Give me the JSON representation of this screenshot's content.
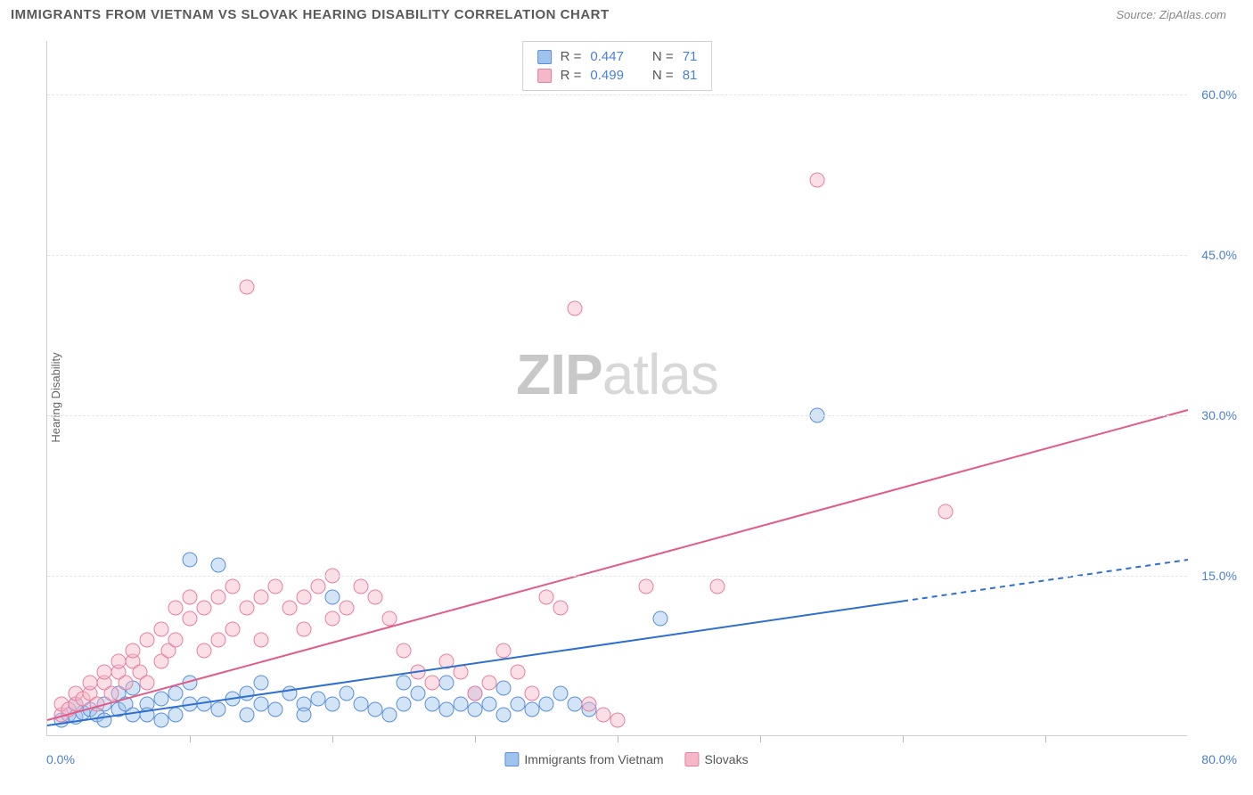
{
  "title": "IMMIGRANTS FROM VIETNAM VS SLOVAK HEARING DISABILITY CORRELATION CHART",
  "source": "Source: ZipAtlas.com",
  "y_axis_label": "Hearing Disability",
  "watermark_bold": "ZIP",
  "watermark_light": "atlas",
  "chart": {
    "type": "scatter",
    "xlim": [
      0,
      80
    ],
    "ylim": [
      0,
      65
    ],
    "x_start_label": "0.0%",
    "x_end_label": "80.0%",
    "x_tick_step": 10,
    "y_grid": [
      {
        "value": 15,
        "label": "15.0%"
      },
      {
        "value": 30,
        "label": "30.0%"
      },
      {
        "value": 45,
        "label": "45.0%"
      },
      {
        "value": 60,
        "label": "60.0%"
      }
    ],
    "background_color": "#ffffff",
    "grid_color": "#e5e5e5",
    "marker_radius": 8,
    "marker_opacity": 0.45,
    "line_width": 2,
    "series": [
      {
        "name": "Immigrants from Vietnam",
        "label": "Immigrants from Vietnam",
        "color_fill": "#9fc3ed",
        "color_stroke": "#5a8fd6",
        "line_color": "#2e6fd1",
        "r_value": "0.447",
        "n_value": "71",
        "trend": {
          "x1": 0,
          "y1": 1.0,
          "x2": 80,
          "y2": 16.5,
          "solid_until_x": 60
        },
        "points": [
          [
            1,
            1.5
          ],
          [
            1.5,
            2
          ],
          [
            2,
            1.8
          ],
          [
            2.5,
            2.2
          ],
          [
            2,
            3
          ],
          [
            3,
            2.5
          ],
          [
            3.5,
            2
          ],
          [
            4,
            3
          ],
          [
            4,
            1.5
          ],
          [
            5,
            2.5
          ],
          [
            5,
            4
          ],
          [
            5.5,
            3
          ],
          [
            6,
            2
          ],
          [
            6,
            4.5
          ],
          [
            7,
            3
          ],
          [
            7,
            2
          ],
          [
            8,
            3.5
          ],
          [
            8,
            1.5
          ],
          [
            9,
            4
          ],
          [
            9,
            2
          ],
          [
            10,
            3
          ],
          [
            10,
            5
          ],
          [
            10,
            16.5
          ],
          [
            11,
            3
          ],
          [
            12,
            16
          ],
          [
            12,
            2.5
          ],
          [
            13,
            3.5
          ],
          [
            14,
            2
          ],
          [
            14,
            4
          ],
          [
            15,
            3
          ],
          [
            15,
            5
          ],
          [
            16,
            2.5
          ],
          [
            17,
            4
          ],
          [
            18,
            3
          ],
          [
            18,
            2
          ],
          [
            19,
            3.5
          ],
          [
            20,
            13
          ],
          [
            20,
            3
          ],
          [
            21,
            4
          ],
          [
            22,
            3
          ],
          [
            23,
            2.5
          ],
          [
            24,
            2
          ],
          [
            25,
            3
          ],
          [
            25,
            5
          ],
          [
            26,
            4
          ],
          [
            27,
            3
          ],
          [
            28,
            2.5
          ],
          [
            28,
            5
          ],
          [
            29,
            3
          ],
          [
            30,
            4
          ],
          [
            30,
            2.5
          ],
          [
            31,
            3
          ],
          [
            32,
            2
          ],
          [
            32,
            4.5
          ],
          [
            33,
            3
          ],
          [
            34,
            2.5
          ],
          [
            35,
            3
          ],
          [
            36,
            4
          ],
          [
            37,
            3
          ],
          [
            38,
            2.5
          ],
          [
            43,
            11
          ],
          [
            54,
            30
          ]
        ]
      },
      {
        "name": "Slovaks",
        "label": "Slovaks",
        "color_fill": "#f5b8c8",
        "color_stroke": "#e87fa0",
        "line_color": "#e35a88",
        "r_value": "0.499",
        "n_value": "81",
        "trend": {
          "x1": 0,
          "y1": 1.5,
          "x2": 80,
          "y2": 30.5,
          "solid_until_x": 80
        },
        "points": [
          [
            1,
            2
          ],
          [
            1,
            3
          ],
          [
            1.5,
            2.5
          ],
          [
            2,
            3
          ],
          [
            2,
            4
          ],
          [
            2.5,
            3.5
          ],
          [
            3,
            4
          ],
          [
            3,
            5
          ],
          [
            3.5,
            3
          ],
          [
            4,
            5
          ],
          [
            4,
            6
          ],
          [
            4.5,
            4
          ],
          [
            5,
            6
          ],
          [
            5,
            7
          ],
          [
            5.5,
            5
          ],
          [
            6,
            7
          ],
          [
            6,
            8
          ],
          [
            6.5,
            6
          ],
          [
            7,
            9
          ],
          [
            7,
            5
          ],
          [
            8,
            10
          ],
          [
            8,
            7
          ],
          [
            8.5,
            8
          ],
          [
            9,
            12
          ],
          [
            9,
            9
          ],
          [
            10,
            11
          ],
          [
            10,
            13
          ],
          [
            11,
            12
          ],
          [
            11,
            8
          ],
          [
            12,
            13
          ],
          [
            12,
            9
          ],
          [
            13,
            14
          ],
          [
            13,
            10
          ],
          [
            14,
            42
          ],
          [
            14,
            12
          ],
          [
            15,
            13
          ],
          [
            15,
            9
          ],
          [
            16,
            14
          ],
          [
            17,
            12
          ],
          [
            18,
            10
          ],
          [
            18,
            13
          ],
          [
            19,
            14
          ],
          [
            20,
            11
          ],
          [
            20,
            15
          ],
          [
            21,
            12
          ],
          [
            22,
            14
          ],
          [
            23,
            13
          ],
          [
            24,
            11
          ],
          [
            25,
            8
          ],
          [
            26,
            6
          ],
          [
            27,
            5
          ],
          [
            28,
            7
          ],
          [
            29,
            6
          ],
          [
            30,
            4
          ],
          [
            31,
            5
          ],
          [
            32,
            8
          ],
          [
            33,
            6
          ],
          [
            34,
            4
          ],
          [
            35,
            13
          ],
          [
            36,
            12
          ],
          [
            37,
            40
          ],
          [
            38,
            3
          ],
          [
            39,
            2
          ],
          [
            40,
            1.5
          ],
          [
            42,
            14
          ],
          [
            47,
            14
          ],
          [
            54,
            52
          ],
          [
            63,
            21
          ]
        ]
      }
    ]
  },
  "stats_box": {
    "r_label": "R =",
    "n_label": "N ="
  }
}
